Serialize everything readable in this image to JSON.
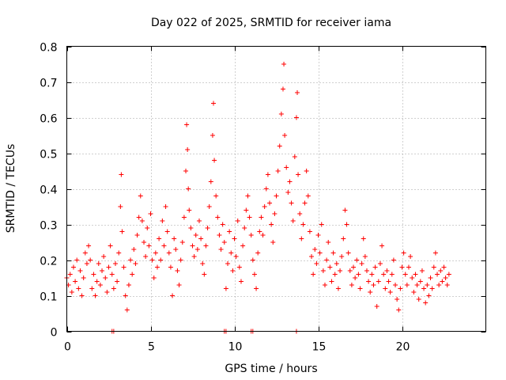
{
  "chart_data": {
    "type": "scatter",
    "title": "Day 022 of 2025, SRMTID for receiver iama",
    "xlabel": "GPS time / hours",
    "ylabel": "SRMTID / TECUs",
    "xlim": [
      0,
      25
    ],
    "ylim": [
      0,
      0.8
    ],
    "xticks": [
      0,
      5,
      10,
      15,
      20
    ],
    "yticks": [
      0,
      0.1,
      0.2,
      0.3,
      0.4,
      0.5,
      0.6,
      0.7,
      0.8
    ],
    "xtick_labels": [
      "0",
      "5",
      "10",
      "15",
      "20"
    ],
    "ytick_labels": [
      "0",
      "0.1",
      "0.2",
      "0.3",
      "0.4",
      "0.5",
      "0.6",
      "0.7",
      "0.8"
    ],
    "grid": true,
    "marker": "+",
    "color": "#ff0000",
    "series": [
      {
        "name": "SRMTID",
        "points": [
          [
            0.0,
            0.15
          ],
          [
            0.1,
            0.13
          ],
          [
            0.2,
            0.16
          ],
          [
            0.3,
            0.11
          ],
          [
            0.4,
            0.18
          ],
          [
            0.5,
            0.14
          ],
          [
            0.6,
            0.2
          ],
          [
            0.7,
            0.12
          ],
          [
            0.8,
            0.17
          ],
          [
            0.9,
            0.1
          ],
          [
            1.0,
            0.15
          ],
          [
            1.1,
            0.22
          ],
          [
            1.2,
            0.19
          ],
          [
            1.3,
            0.24
          ],
          [
            1.4,
            0.2
          ],
          [
            1.5,
            0.12
          ],
          [
            1.6,
            0.16
          ],
          [
            1.7,
            0.1
          ],
          [
            1.8,
            0.14
          ],
          [
            1.9,
            0.19
          ],
          [
            2.0,
            0.13
          ],
          [
            2.1,
            0.17
          ],
          [
            2.2,
            0.21
          ],
          [
            2.3,
            0.15
          ],
          [
            2.4,
            0.11
          ],
          [
            2.5,
            0.18
          ],
          [
            2.6,
            0.24
          ],
          [
            2.7,
            0.16
          ],
          [
            2.8,
            0.12
          ],
          [
            2.9,
            0.19
          ],
          [
            3.0,
            0.14
          ],
          [
            3.1,
            0.22
          ],
          [
            3.2,
            0.35
          ],
          [
            3.25,
            0.44
          ],
          [
            3.3,
            0.28
          ],
          [
            3.4,
            0.18
          ],
          [
            3.5,
            0.1
          ],
          [
            3.6,
            0.06
          ],
          [
            3.7,
            0.13
          ],
          [
            3.8,
            0.2
          ],
          [
            3.9,
            0.16
          ],
          [
            4.0,
            0.23
          ],
          [
            4.1,
            0.19
          ],
          [
            4.2,
            0.27
          ],
          [
            4.3,
            0.32
          ],
          [
            4.4,
            0.38
          ],
          [
            4.5,
            0.31
          ],
          [
            4.6,
            0.25
          ],
          [
            4.7,
            0.21
          ],
          [
            4.8,
            0.29
          ],
          [
            4.9,
            0.24
          ],
          [
            5.0,
            0.33
          ],
          [
            5.1,
            0.2
          ],
          [
            5.2,
            0.15
          ],
          [
            5.3,
            0.22
          ],
          [
            5.4,
            0.18
          ],
          [
            5.5,
            0.26
          ],
          [
            5.6,
            0.2
          ],
          [
            5.7,
            0.31
          ],
          [
            5.8,
            0.24
          ],
          [
            5.9,
            0.35
          ],
          [
            6.0,
            0.28
          ],
          [
            6.1,
            0.22
          ],
          [
            6.2,
            0.18
          ],
          [
            6.3,
            0.1
          ],
          [
            6.4,
            0.26
          ],
          [
            6.5,
            0.23
          ],
          [
            6.6,
            0.17
          ],
          [
            6.7,
            0.13
          ],
          [
            6.8,
            0.2
          ],
          [
            6.9,
            0.25
          ],
          [
            7.0,
            0.32
          ],
          [
            7.1,
            0.45
          ],
          [
            7.15,
            0.58
          ],
          [
            7.2,
            0.51
          ],
          [
            7.25,
            0.4
          ],
          [
            7.3,
            0.34
          ],
          [
            7.4,
            0.29
          ],
          [
            7.5,
            0.24
          ],
          [
            7.6,
            0.21
          ],
          [
            7.7,
            0.27
          ],
          [
            7.8,
            0.23
          ],
          [
            7.9,
            0.31
          ],
          [
            8.0,
            0.26
          ],
          [
            8.1,
            0.19
          ],
          [
            8.2,
            0.16
          ],
          [
            8.3,
            0.24
          ],
          [
            8.4,
            0.29
          ],
          [
            8.5,
            0.35
          ],
          [
            8.6,
            0.42
          ],
          [
            8.7,
            0.55
          ],
          [
            8.75,
            0.64
          ],
          [
            8.8,
            0.48
          ],
          [
            8.9,
            0.38
          ],
          [
            9.0,
            0.32
          ],
          [
            9.1,
            0.27
          ],
          [
            9.2,
            0.23
          ],
          [
            9.3,
            0.3
          ],
          [
            9.4,
            0.25
          ],
          [
            9.5,
            0.12
          ],
          [
            9.6,
            0.19
          ],
          [
            9.7,
            0.28
          ],
          [
            9.8,
            0.22
          ],
          [
            9.9,
            0.17
          ],
          [
            10.0,
            0.26
          ],
          [
            10.1,
            0.21
          ],
          [
            10.2,
            0.31
          ],
          [
            10.3,
            0.18
          ],
          [
            10.4,
            0.14
          ],
          [
            10.5,
            0.24
          ],
          [
            10.6,
            0.29
          ],
          [
            10.7,
            0.34
          ],
          [
            10.8,
            0.38
          ],
          [
            10.9,
            0.32
          ],
          [
            11.0,
            0.27
          ],
          [
            11.1,
            0.2
          ],
          [
            11.2,
            0.16
          ],
          [
            11.3,
            0.12
          ],
          [
            11.4,
            0.22
          ],
          [
            11.5,
            0.28
          ],
          [
            11.6,
            0.32
          ],
          [
            11.7,
            0.27
          ],
          [
            11.8,
            0.35
          ],
          [
            11.9,
            0.4
          ],
          [
            12.0,
            0.44
          ],
          [
            12.1,
            0.36
          ],
          [
            12.2,
            0.3
          ],
          [
            12.3,
            0.25
          ],
          [
            12.4,
            0.33
          ],
          [
            12.5,
            0.38
          ],
          [
            12.6,
            0.45
          ],
          [
            12.7,
            0.52
          ],
          [
            12.8,
            0.61
          ],
          [
            12.9,
            0.68
          ],
          [
            12.95,
            0.75
          ],
          [
            13.0,
            0.55
          ],
          [
            13.1,
            0.46
          ],
          [
            13.2,
            0.39
          ],
          [
            13.3,
            0.42
          ],
          [
            13.4,
            0.36
          ],
          [
            13.5,
            0.31
          ],
          [
            13.6,
            0.49
          ],
          [
            13.7,
            0.6
          ],
          [
            13.75,
            0.67
          ],
          [
            13.8,
            0.44
          ],
          [
            13.9,
            0.33
          ],
          [
            14.0,
            0.26
          ],
          [
            14.1,
            0.3
          ],
          [
            14.2,
            0.36
          ],
          [
            14.3,
            0.45
          ],
          [
            14.4,
            0.38
          ],
          [
            14.5,
            0.28
          ],
          [
            14.6,
            0.21
          ],
          [
            14.7,
            0.16
          ],
          [
            14.8,
            0.23
          ],
          [
            14.9,
            0.19
          ],
          [
            15.0,
            0.27
          ],
          [
            15.1,
            0.22
          ],
          [
            15.2,
            0.3
          ],
          [
            15.3,
            0.17
          ],
          [
            15.4,
            0.13
          ],
          [
            15.5,
            0.2
          ],
          [
            15.6,
            0.25
          ],
          [
            15.7,
            0.18
          ],
          [
            15.8,
            0.14
          ],
          [
            15.9,
            0.22
          ],
          [
            16.0,
            0.16
          ],
          [
            16.1,
            0.19
          ],
          [
            16.2,
            0.12
          ],
          [
            16.3,
            0.17
          ],
          [
            16.4,
            0.21
          ],
          [
            16.5,
            0.26
          ],
          [
            16.6,
            0.34
          ],
          [
            16.7,
            0.3
          ],
          [
            16.8,
            0.22
          ],
          [
            16.9,
            0.17
          ],
          [
            17.0,
            0.13
          ],
          [
            17.1,
            0.18
          ],
          [
            17.2,
            0.15
          ],
          [
            17.3,
            0.2
          ],
          [
            17.4,
            0.16
          ],
          [
            17.5,
            0.12
          ],
          [
            17.6,
            0.19
          ],
          [
            17.7,
            0.26
          ],
          [
            17.8,
            0.21
          ],
          [
            17.9,
            0.17
          ],
          [
            18.0,
            0.14
          ],
          [
            18.1,
            0.11
          ],
          [
            18.2,
            0.16
          ],
          [
            18.3,
            0.13
          ],
          [
            18.4,
            0.18
          ],
          [
            18.5,
            0.07
          ],
          [
            18.6,
            0.14
          ],
          [
            18.7,
            0.19
          ],
          [
            18.8,
            0.24
          ],
          [
            18.9,
            0.16
          ],
          [
            19.0,
            0.12
          ],
          [
            19.1,
            0.17
          ],
          [
            19.2,
            0.14
          ],
          [
            19.3,
            0.11
          ],
          [
            19.4,
            0.16
          ],
          [
            19.5,
            0.2
          ],
          [
            19.6,
            0.13
          ],
          [
            19.7,
            0.09
          ],
          [
            19.8,
            0.06
          ],
          [
            19.9,
            0.12
          ],
          [
            20.0,
            0.18
          ],
          [
            20.1,
            0.22
          ],
          [
            20.2,
            0.16
          ],
          [
            20.3,
            0.13
          ],
          [
            20.4,
            0.18
          ],
          [
            20.5,
            0.21
          ],
          [
            20.6,
            0.15
          ],
          [
            20.7,
            0.11
          ],
          [
            20.8,
            0.16
          ],
          [
            20.9,
            0.13
          ],
          [
            21.0,
            0.09
          ],
          [
            21.1,
            0.14
          ],
          [
            21.2,
            0.17
          ],
          [
            21.3,
            0.12
          ],
          [
            21.4,
            0.08
          ],
          [
            21.5,
            0.13
          ],
          [
            21.6,
            0.1
          ],
          [
            21.7,
            0.15
          ],
          [
            21.8,
            0.12
          ],
          [
            21.9,
            0.18
          ],
          [
            22.0,
            0.22
          ],
          [
            22.1,
            0.16
          ],
          [
            22.2,
            0.13
          ],
          [
            22.3,
            0.17
          ],
          [
            22.4,
            0.14
          ],
          [
            22.5,
            0.18
          ],
          [
            22.6,
            0.15
          ],
          [
            22.7,
            0.13
          ],
          [
            22.8,
            0.16
          ],
          [
            2.7,
            0.0
          ],
          [
            2.8,
            0.0
          ],
          [
            9.4,
            0.0
          ],
          [
            9.5,
            0.0
          ],
          [
            11.0,
            0.0
          ],
          [
            11.1,
            0.0
          ],
          [
            13.7,
            0.0
          ]
        ]
      }
    ]
  }
}
